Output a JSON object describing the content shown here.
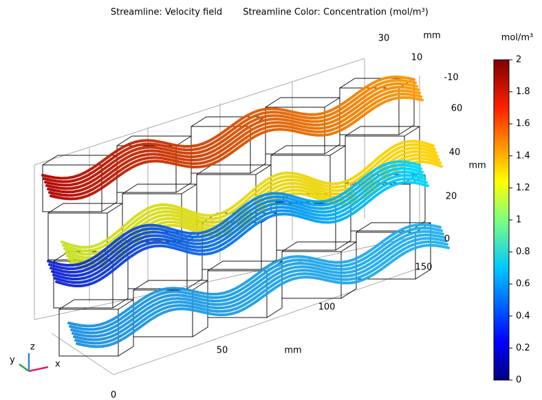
{
  "header": {
    "title_left": "Streamline: Velocity field",
    "title_right": "Streamline Color: Concentration (mol/m³)"
  },
  "colorbar": {
    "unit": "mol/m³",
    "lim": [
      0,
      2
    ],
    "ticks": [
      0,
      0.2,
      0.4,
      0.6,
      0.8,
      1,
      1.2,
      1.4,
      1.6,
      1.8,
      2
    ]
  },
  "axes": {
    "x": {
      "unit": "mm",
      "ticks": [
        0,
        50,
        100,
        150
      ]
    },
    "y": {
      "unit": "mm",
      "ticks": [
        30,
        10,
        -10
      ]
    },
    "z": {
      "unit": "mm",
      "ticks": [
        0,
        20,
        40,
        60
      ]
    }
  },
  "triad": {
    "x": "x",
    "y": "y",
    "z": "z"
  }
}
